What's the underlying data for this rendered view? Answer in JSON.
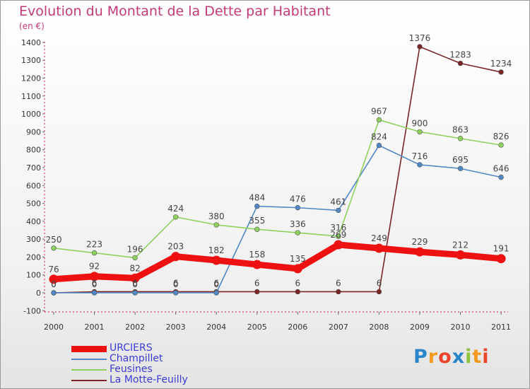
{
  "title": "Evolution du Montant de la Dette par Habitant",
  "unit_label": "(en €)",
  "logo": {
    "text": "Proxiti",
    "parts": [
      "P",
      "r",
      "o",
      "x",
      "i",
      "t",
      "i"
    ]
  },
  "chart_data": {
    "type": "line",
    "title": "Evolution du Montant de la Dette par Habitant",
    "ylabel": "(en €)",
    "xlabel": "",
    "categories": [
      "2000",
      "2001",
      "2002",
      "2003",
      "2004",
      "2005",
      "2006",
      "2007",
      "2008",
      "2009",
      "2010",
      "2011"
    ],
    "ylim": [
      -100,
      1400
    ],
    "yticks": [
      -100,
      0,
      100,
      200,
      300,
      400,
      500,
      600,
      700,
      800,
      900,
      1000,
      1100,
      1200,
      1300,
      1400
    ],
    "grid": false,
    "legend_position": "bottom-left",
    "series": [
      {
        "name": "URCIERS",
        "color": "#ee1111",
        "values": [
          76,
          92,
          82,
          203,
          182,
          158,
          135,
          269,
          249,
          229,
          212,
          191
        ],
        "labels": [
          "76",
          "92",
          "82",
          "203",
          "182",
          "158",
          "135",
          "269",
          "249",
          "229",
          "212",
          "191"
        ]
      },
      {
        "name": "Champillet",
        "color": "#4f88c4",
        "values": [
          0,
          0,
          0,
          0,
          0,
          484,
          476,
          461,
          824,
          716,
          695,
          646
        ],
        "labels": [
          "0",
          "0",
          "0",
          "0",
          "0",
          "484",
          "476",
          "461",
          "824",
          "716",
          "695",
          "646"
        ]
      },
      {
        "name": "Feusines",
        "color": "#8ed15c",
        "values": [
          250,
          223,
          196,
          424,
          380,
          355,
          336,
          316,
          967,
          900,
          863,
          826
        ],
        "labels": [
          "250",
          "223",
          "196",
          "424",
          "380",
          "355",
          "336",
          "316",
          "967",
          "900",
          "863",
          "826"
        ]
      },
      {
        "name": "La Motte-Feuilly",
        "color": "#7a2424",
        "values": [
          0,
          6,
          6,
          6,
          6,
          6,
          6,
          6,
          6,
          1376,
          1283,
          1234
        ],
        "labels": [
          "0",
          "6",
          "6",
          "6",
          "6",
          "6",
          "6",
          "6",
          "6",
          "1376",
          "1283",
          "1234"
        ]
      }
    ]
  }
}
